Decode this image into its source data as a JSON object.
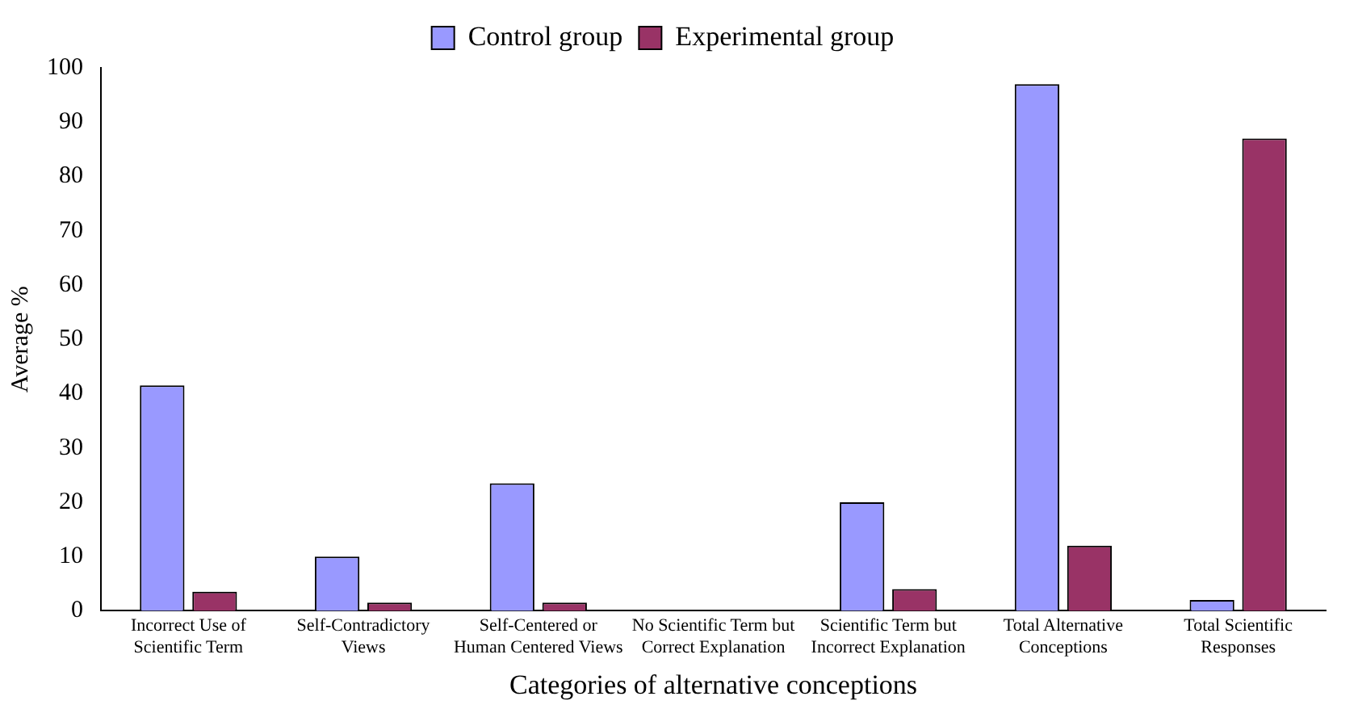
{
  "chart_data": {
    "type": "bar",
    "xlabel": "Categories of alternative conceptions",
    "ylabel": "Average %",
    "categories": [
      "Incorrect Use of Scientific Term",
      "Self-Contradictory Views",
      "Self-Centered or Human Centered Views",
      "No Scientific Term but Correct Explanation",
      "Scientific Term but Incorrect Explanation",
      "Total Alternative Conceptions",
      "Total Scientific Responses"
    ],
    "series": [
      {
        "name": "Control group",
        "color": "#9999ff",
        "values": [
          41.5,
          10,
          23.5,
          0,
          20,
          97,
          2
        ]
      },
      {
        "name": "Experimental group",
        "color": "#993366",
        "values": [
          3.5,
          1.5,
          1.5,
          0,
          4,
          12,
          87
        ]
      }
    ],
    "ylim": [
      0,
      100
    ],
    "yticks": [
      0,
      10,
      20,
      30,
      40,
      50,
      60,
      70,
      80,
      90,
      100
    ],
    "grid": false,
    "legend": "top"
  }
}
